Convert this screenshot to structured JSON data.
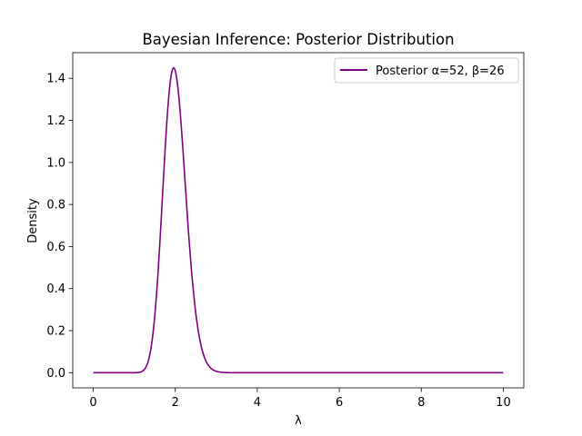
{
  "chart_data": {
    "type": "line",
    "title": "Bayesian Inference: Posterior Distribution",
    "xlabel": "λ",
    "ylabel": "Density",
    "xlim": [
      -0.5,
      10.5
    ],
    "ylim": [
      -0.072,
      1.522
    ],
    "xticks": [
      0,
      2,
      4,
      6,
      8,
      10
    ],
    "yticks": [
      0.0,
      0.2,
      0.4,
      0.6,
      0.8,
      1.0,
      1.2,
      1.4
    ],
    "grid": false,
    "legend_position": "top-right",
    "series": [
      {
        "name": "Posterior α=52, β=26",
        "color": "#800080",
        "distribution": "gamma",
        "shape": 52,
        "rate": 26,
        "x_range": [
          0,
          10
        ]
      }
    ]
  }
}
